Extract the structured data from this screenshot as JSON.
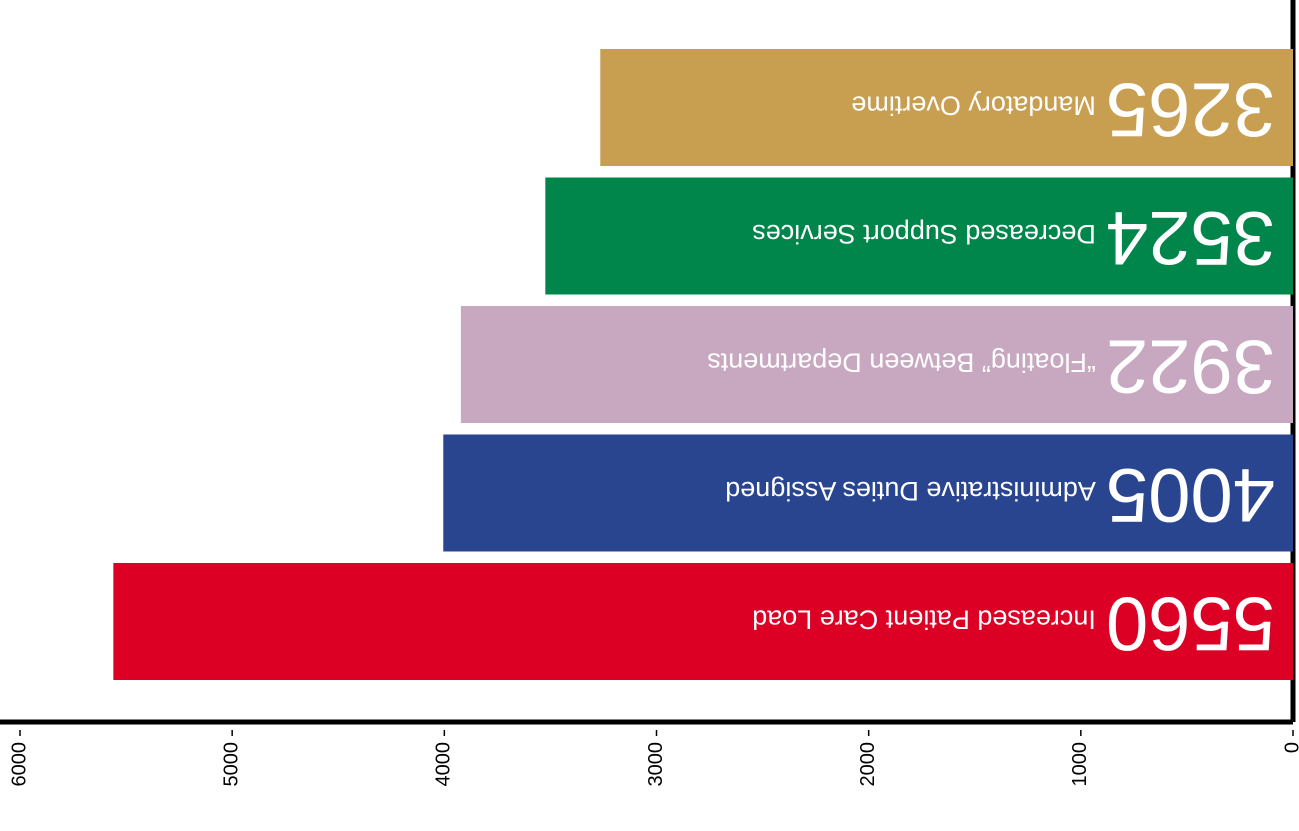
{
  "chart_data": {
    "type": "bar",
    "orientation": "horizontal",
    "rotation": 180,
    "categories": [
      "Increased Patient Care Load",
      "Administrative Duties Assigned",
      "“Floating” Between Departments",
      "Decreased Support Services",
      "Mandatory Overtime"
    ],
    "values": [
      5560,
      4005,
      3922,
      3524,
      3265
    ],
    "colors": [
      "#dc0025",
      "#2a4590",
      "#c8a8c0",
      "#00854a",
      "#c89e50"
    ],
    "xlim": [
      0,
      6000
    ],
    "xticks": [
      0,
      1000,
      2000,
      3000,
      4000,
      5000,
      6000
    ]
  }
}
